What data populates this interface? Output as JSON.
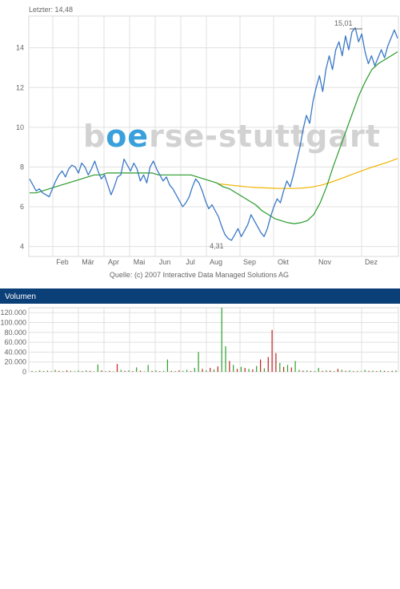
{
  "header": {
    "last_label": "Letzter: 14,48"
  },
  "watermark": {
    "pre": "b",
    "accent": "oe",
    "post": "rse-stuttgart",
    "accent_color": "#3aa0dc"
  },
  "source_note": "Quelle: (c) 2007 Interactive Data Managed Solutions AG",
  "volume_panel": {
    "title": "Volumen",
    "bar_color": "#0b3f78"
  },
  "colors": {
    "price": "#3a78c6",
    "ma_short": "#2a9a2a",
    "ma_long": "#f0b400",
    "vol_up": "#2aa02a",
    "vol_down": "#c02020",
    "grid": "#e0e0e0"
  },
  "chart_data": [
    {
      "type": "line",
      "title": "",
      "x_tick_labels": [
        "Feb",
        "Mär",
        "Apr",
        "Mai",
        "Jun",
        "Jul",
        "Aug",
        "Sep",
        "Okt",
        "Nov",
        "Dez"
      ],
      "y_tick_labels": [
        "4",
        "6",
        "8",
        "10",
        "12",
        "14"
      ],
      "ylim": [
        3.5,
        15.6
      ],
      "grid": true,
      "annotations": {
        "high": "15,01",
        "low": "4,31"
      },
      "series": [
        {
          "values": [
            7.4,
            7.1,
            6.8,
            6.9,
            6.7,
            6.6,
            6.5,
            6.9,
            7.3,
            7.6,
            7.8,
            7.5,
            7.9,
            8.1,
            8.0,
            7.7,
            8.2,
            8.0,
            7.6,
            7.9,
            8.3,
            7.8,
            7.4,
            7.6,
            7.1,
            6.6,
            7.0,
            7.5,
            7.6,
            8.4,
            8.1,
            7.8,
            8.2,
            7.9,
            7.3,
            7.6,
            7.2,
            8.0,
            8.3,
            7.9,
            7.6,
            7.3,
            7.5,
            7.1,
            6.9,
            6.6,
            6.3,
            6.0,
            6.2,
            6.5,
            7.0,
            7.4,
            7.2,
            6.8,
            6.3,
            5.9,
            6.1,
            5.8,
            5.5,
            5.0,
            4.6,
            4.4,
            4.31,
            4.6,
            4.9,
            4.5,
            4.8,
            5.1,
            5.6,
            5.3,
            5.0,
            4.7,
            4.5,
            4.9,
            5.5,
            6.0,
            6.4,
            6.2,
            6.8,
            7.3,
            7.0,
            7.6,
            8.3,
            9.0,
            9.9,
            10.6,
            10.2,
            11.3,
            12.0,
            12.6,
            11.8,
            12.9,
            13.6,
            12.9,
            13.9,
            14.3,
            13.6,
            14.6,
            13.9,
            14.8,
            15.01,
            14.3,
            14.7,
            13.8,
            13.2,
            13.6,
            13.1,
            13.5,
            13.9,
            13.5,
            14.1,
            14.5,
            14.9,
            14.48
          ]
        },
        {
          "values": [
            6.7,
            6.7,
            6.8,
            6.9,
            7.0,
            7.1,
            7.2,
            7.3,
            7.4,
            7.5,
            7.6,
            7.6,
            7.7,
            7.7,
            7.7,
            7.7,
            7.7,
            7.7,
            7.7,
            7.7,
            7.6,
            7.6,
            7.6,
            7.6,
            7.6,
            7.6,
            7.5,
            7.4,
            7.3,
            7.2,
            7.0,
            6.9,
            6.7,
            6.5,
            6.3,
            6.1,
            5.8,
            5.6,
            5.4,
            5.3,
            5.2,
            5.15,
            5.2,
            5.3,
            5.6,
            6.2,
            7.0,
            8.0,
            8.9,
            9.8,
            10.7,
            11.6,
            12.3,
            12.9,
            13.2,
            13.4,
            13.6,
            13.8
          ]
        },
        {
          "values": [
            7.15,
            7.1,
            7.05,
            7.0,
            6.97,
            6.95,
            6.93,
            6.92,
            6.92,
            6.95,
            7.0,
            7.1,
            7.25,
            7.42,
            7.6,
            7.78,
            7.95,
            8.1,
            8.25,
            8.43
          ]
        }
      ]
    },
    {
      "type": "bar",
      "title": "Volumen",
      "y_tick_labels": [
        "0",
        "20.000",
        "40.000",
        "60.000",
        "80.000",
        "100.000",
        "120.000"
      ],
      "ylim": [
        0,
        130000
      ],
      "values": [
        2000,
        1000,
        3000,
        1500,
        2500,
        1000,
        4000,
        2000,
        1500,
        3000,
        2000,
        1000,
        2500,
        1500,
        3000,
        2000,
        1000,
        15000,
        3000,
        1500,
        2000,
        1000,
        16000,
        4000,
        2000,
        3000,
        1500,
        9000,
        2500,
        1000,
        14000,
        2000,
        3000,
        1500,
        2000,
        25000,
        2000,
        1500,
        3000,
        2000,
        4000,
        1500,
        8000,
        40000,
        6000,
        3000,
        8000,
        5000,
        11000,
        130000,
        52000,
        22000,
        14000,
        6000,
        10000,
        8000,
        6000,
        5000,
        12000,
        25000,
        7000,
        30000,
        85000,
        38000,
        18000,
        10000,
        14000,
        9000,
        22000,
        4000,
        2500,
        3000,
        2000,
        1500,
        8000,
        2000,
        3000,
        2500,
        1500,
        6000,
        4000,
        2000,
        3000,
        1500,
        2000,
        1000,
        4000,
        2000,
        2500,
        1500,
        3000,
        2000,
        1500,
        2000,
        3000
      ],
      "directions": [
        1,
        0,
        1,
        0,
        1,
        0,
        1,
        0,
        1,
        0,
        1,
        0,
        1,
        0,
        1,
        0,
        1,
        1,
        0,
        1,
        0,
        1,
        0,
        1,
        0,
        1,
        0,
        1,
        0,
        1,
        1,
        0,
        1,
        0,
        1,
        1,
        0,
        1,
        0,
        1,
        1,
        0,
        1,
        1,
        0,
        1,
        0,
        1,
        0,
        1,
        1,
        0,
        1,
        0,
        1,
        0,
        1,
        0,
        1,
        0,
        1,
        0,
        0,
        0,
        1,
        0,
        1,
        0,
        1,
        1,
        0,
        1,
        0,
        1,
        1,
        0,
        1,
        0,
        1,
        0,
        1,
        0,
        1,
        0,
        1,
        0,
        1,
        0,
        1,
        0,
        1,
        0,
        1,
        0,
        1
      ]
    }
  ]
}
